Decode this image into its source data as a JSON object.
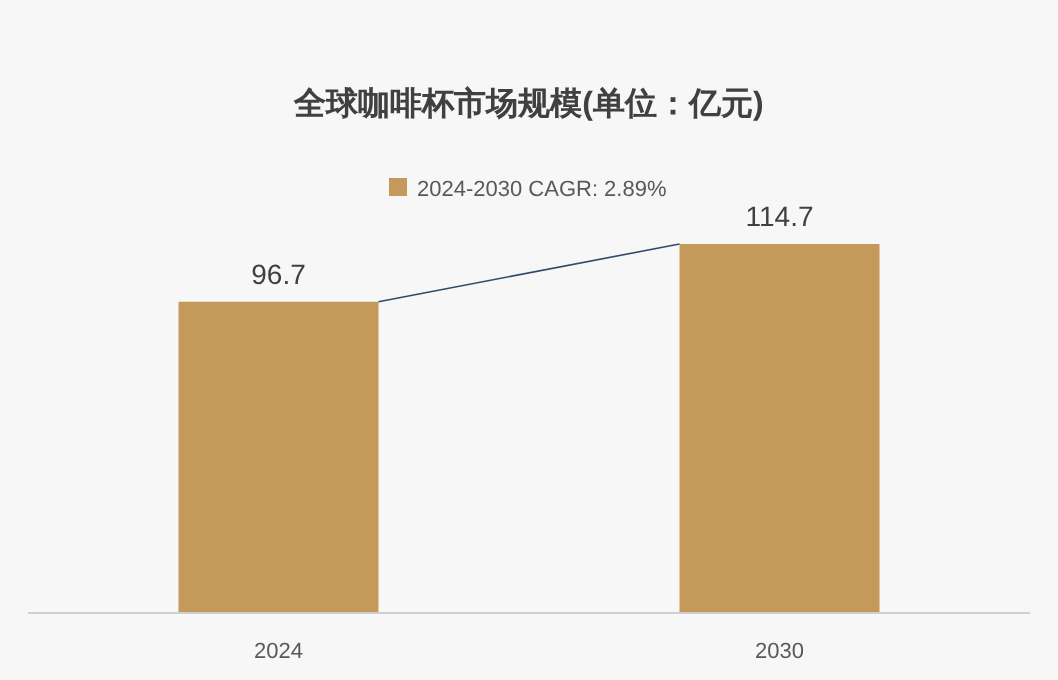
{
  "chart_data": {
    "type": "bar",
    "title": "全球咖啡杯市场规模(单位：亿元)",
    "categories": [
      "2024",
      "2030"
    ],
    "series": [
      {
        "name": "2024-2030 CAGR: 2.89%",
        "color": "#c39a5a",
        "values": [
          96.7,
          114.7
        ]
      }
    ],
    "data_labels": true,
    "legend": "top"
  }
}
